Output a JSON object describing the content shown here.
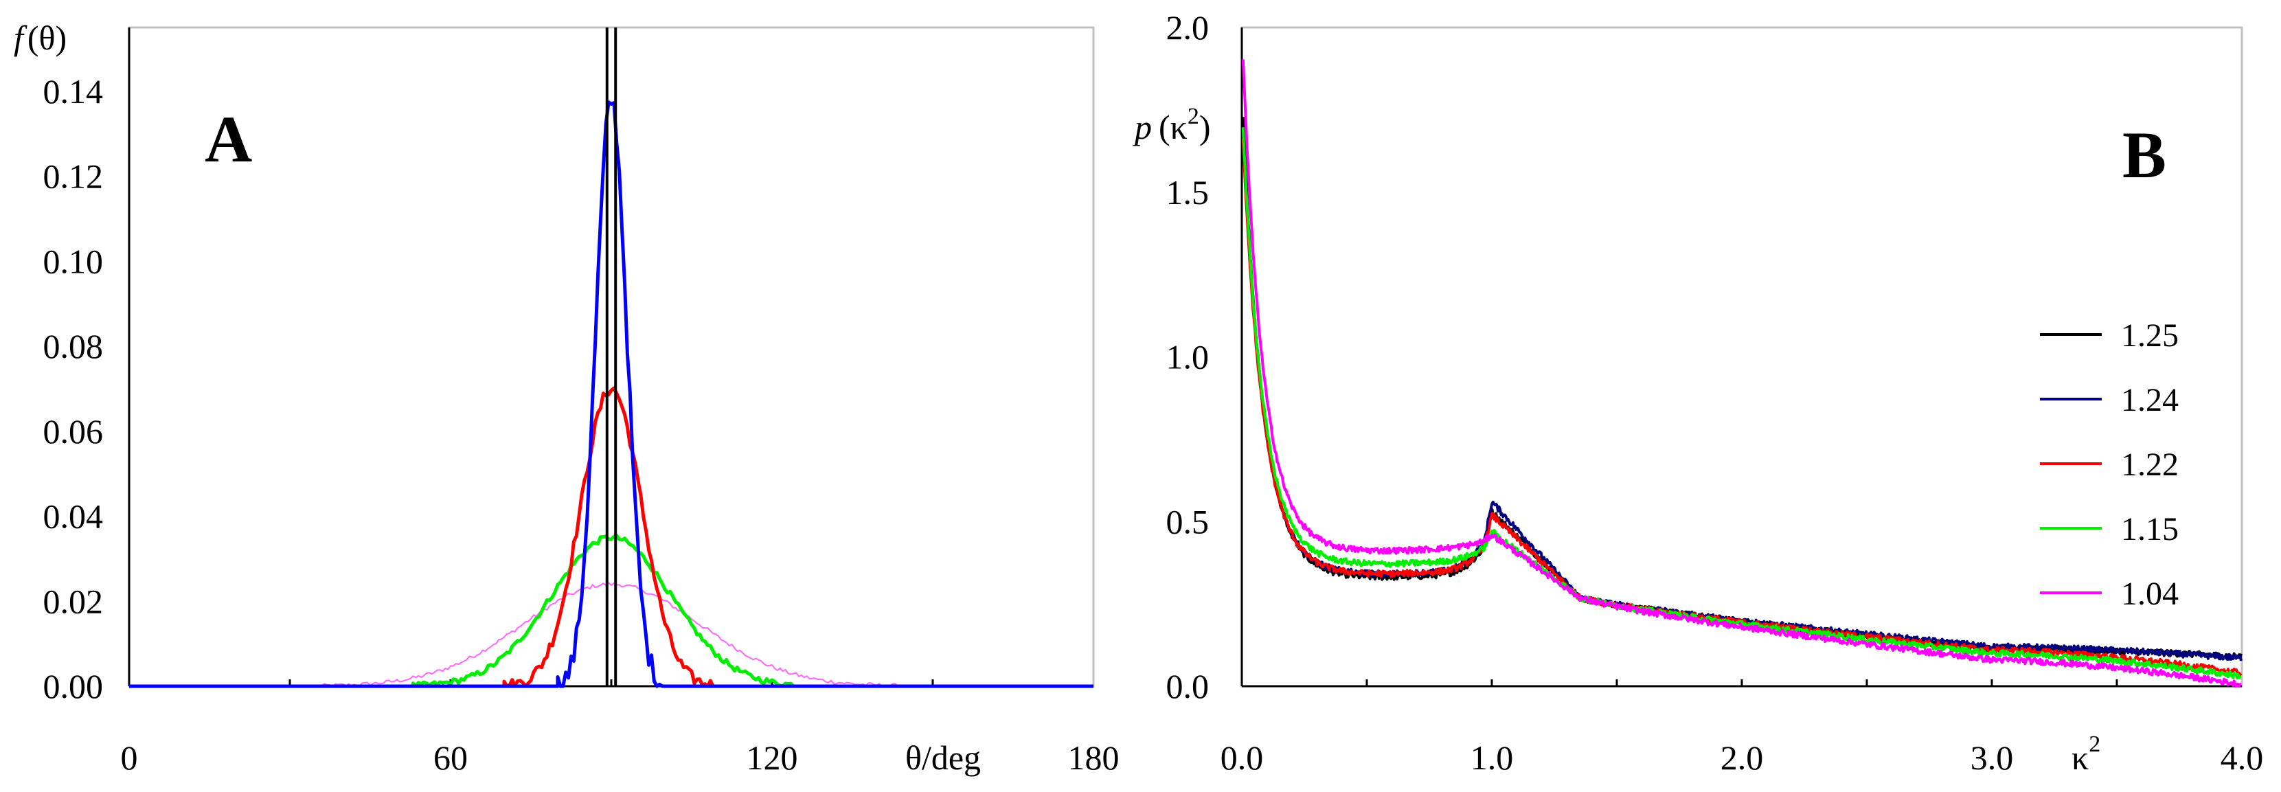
{
  "chart_data": [
    {
      "panel_label": "A",
      "type": "line",
      "ylabel": "f(θ)",
      "ylabel_parts": {
        "func": "f",
        "arg": "(θ)"
      },
      "xlabel": "θ/deg",
      "xlim": [
        0,
        180
      ],
      "ylim": [
        0,
        0.155
      ],
      "x_ticks": [
        "0",
        "60",
        "120",
        "180"
      ],
      "x_tick_values": [
        0,
        60,
        120,
        180
      ],
      "y_ticks": [
        "0.00",
        "0.02",
        "0.04",
        "0.06",
        "0.08",
        "0.10",
        "0.12",
        "0.14"
      ],
      "y_tick_values": [
        0,
        0.02,
        0.04,
        0.06,
        0.08,
        0.1,
        0.12,
        0.14
      ],
      "grid": false,
      "series": [
        {
          "color": "#ff66ff",
          "thin": true,
          "center": 90,
          "peak": 0.024,
          "sigma": 16.5,
          "xmin": 35,
          "xmax": 145
        },
        {
          "color": "#00ee00",
          "center": 90,
          "peak": 0.035,
          "sigma": 11.2,
          "xmin": 53,
          "xmax": 127
        },
        {
          "color": "#ff0000",
          "center": 90,
          "peak": 0.07,
          "sigma": 5.7,
          "xmin": 70,
          "xmax": 110
        },
        {
          "color": "#0000ff",
          "center": 90,
          "peak": 0.138,
          "sigma": 2.9,
          "xmin": 80,
          "xmax": 100
        },
        {
          "color": "#000000",
          "type": "spike",
          "x": [
            89.2,
            90.8
          ],
          "top": 0.155
        }
      ]
    },
    {
      "panel_label": "B",
      "type": "line",
      "ylabel": "p (κ2)",
      "ylabel_parts": {
        "func": "p",
        "open": "(κ",
        "sup": "2",
        "close": ")"
      },
      "xlabel": "κ2",
      "xlabel_parts": {
        "base": "κ",
        "sup": "2"
      },
      "xlim": [
        0,
        4.0
      ],
      "ylim": [
        0,
        2.0
      ],
      "x_ticks": [
        "0.0",
        "1.0",
        "2.0",
        "3.0",
        "4.0"
      ],
      "x_tick_values": [
        0,
        1,
        2,
        3,
        4
      ],
      "y_ticks": [
        "0.0",
        "0.5",
        "1.0",
        "1.5",
        "2.0"
      ],
      "y_tick_values": [
        0,
        0.5,
        1.0,
        1.5,
        2.0
      ],
      "grid": false,
      "legend_position": "right",
      "series": [
        {
          "name": "1.25",
          "color": "#000000",
          "start": 1.82,
          "mid": 0.35,
          "peak": 0.53,
          "k3": 0.115,
          "end": 0.09
        },
        {
          "name": "1.24",
          "color": "#000080",
          "start": 1.78,
          "mid": 0.36,
          "peak": 0.56,
          "k3": 0.12,
          "end": 0.085
        },
        {
          "name": "1.22",
          "color": "#ff0000",
          "start": 1.75,
          "mid": 0.36,
          "peak": 0.52,
          "k3": 0.11,
          "end": 0.04
        },
        {
          "name": "1.15",
          "color": "#00ee00",
          "start": 1.78,
          "mid": 0.39,
          "peak": 0.47,
          "k3": 0.1,
          "end": 0.03
        },
        {
          "name": "1.04",
          "color": "#ff00ff",
          "start": 2.0,
          "mid": 0.43,
          "peak": 0.46,
          "k3": 0.08,
          "end": 0.005
        }
      ]
    }
  ]
}
